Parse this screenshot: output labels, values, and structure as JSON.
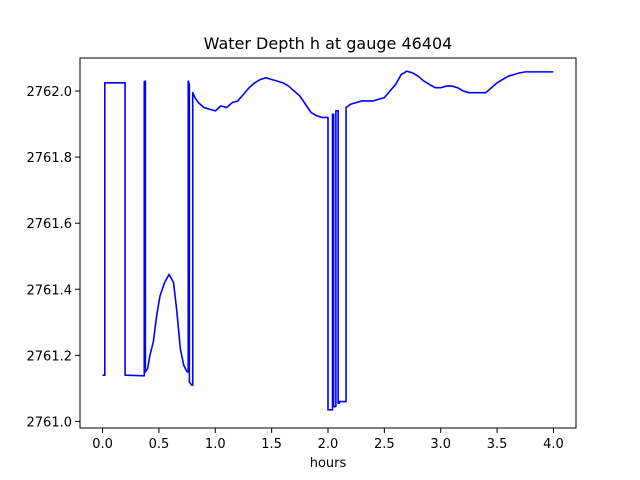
{
  "chart_data": {
    "type": "line",
    "title": "Water Depth h at gauge 46404",
    "xlabel": "hours",
    "ylabel": "",
    "xlim": [
      -0.2,
      4.2
    ],
    "ylim": [
      2760.98,
      2762.1
    ],
    "xticks": [
      0.0,
      0.5,
      1.0,
      1.5,
      2.0,
      2.5,
      3.0,
      3.5,
      4.0
    ],
    "xtick_labels": [
      "0.0",
      "0.5",
      "1.0",
      "1.5",
      "2.0",
      "2.5",
      "3.0",
      "3.5",
      "4.0"
    ],
    "yticks": [
      2761.0,
      2761.2,
      2761.4,
      2761.6,
      2761.8,
      2762.0
    ],
    "ytick_labels": [
      "2761.0",
      "2761.2",
      "2761.4",
      "2761.6",
      "2761.8",
      "2762.0"
    ],
    "grid": false,
    "legend": false,
    "series": [
      {
        "color": "#0000ff",
        "x": [
          0.0,
          0.02,
          0.02,
          0.2,
          0.2,
          0.37,
          0.37,
          0.38,
          0.38,
          0.4,
          0.42,
          0.45,
          0.48,
          0.51,
          0.55,
          0.59,
          0.63,
          0.66,
          0.69,
          0.72,
          0.75,
          0.76,
          0.76,
          0.77,
          0.77,
          0.78,
          0.79,
          0.8,
          0.8,
          0.82,
          0.85,
          0.9,
          0.95,
          1.0,
          1.05,
          1.1,
          1.15,
          1.2,
          1.25,
          1.3,
          1.35,
          1.4,
          1.45,
          1.5,
          1.55,
          1.6,
          1.65,
          1.7,
          1.75,
          1.8,
          1.85,
          1.9,
          1.95,
          2.0,
          2.0,
          2.04,
          2.04,
          2.05,
          2.05,
          2.07,
          2.07,
          2.09,
          2.09,
          2.1,
          2.1,
          2.16,
          2.16,
          2.2,
          2.25,
          2.3,
          2.4,
          2.45,
          2.5,
          2.55,
          2.6,
          2.65,
          2.7,
          2.75,
          2.8,
          2.85,
          2.9,
          2.95,
          3.0,
          3.05,
          3.1,
          3.15,
          3.2,
          3.25,
          3.3,
          3.35,
          3.4,
          3.45,
          3.5,
          3.55,
          3.6,
          3.65,
          3.7,
          3.75,
          3.8,
          3.85,
          3.9,
          3.95,
          4.0
        ],
        "y": [
          2761.14,
          2761.14,
          2762.025,
          2762.025,
          2761.14,
          2761.138,
          2762.028,
          2762.03,
          2761.15,
          2761.16,
          2761.2,
          2761.24,
          2761.32,
          2761.38,
          2761.42,
          2761.445,
          2761.42,
          2761.33,
          2761.22,
          2761.17,
          2761.15,
          2761.15,
          2762.03,
          2762.02,
          2761.12,
          2761.115,
          2761.11,
          2761.11,
          2761.995,
          2761.98,
          2761.965,
          2761.95,
          2761.945,
          2761.94,
          2761.955,
          2761.95,
          2761.965,
          2761.97,
          2761.99,
          2762.01,
          2762.025,
          2762.035,
          2762.04,
          2762.035,
          2762.03,
          2762.025,
          2762.015,
          2762.0,
          2761.985,
          2761.96,
          2761.935,
          2761.925,
          2761.92,
          2761.92,
          2761.035,
          2761.035,
          2761.93,
          2761.93,
          2761.045,
          2761.045,
          2761.94,
          2761.94,
          2761.055,
          2761.055,
          2761.06,
          2761.06,
          2761.95,
          2761.96,
          2761.965,
          2761.97,
          2761.97,
          2761.975,
          2761.98,
          2762.0,
          2762.02,
          2762.05,
          2762.06,
          2762.055,
          2762.045,
          2762.03,
          2762.02,
          2762.01,
          2762.01,
          2762.015,
          2762.015,
          2762.01,
          2762.0,
          2761.995,
          2761.995,
          2761.995,
          2761.995,
          2762.01,
          2762.025,
          2762.035,
          2762.045,
          2762.05,
          2762.055,
          2762.058,
          2762.058,
          2762.058,
          2762.058,
          2762.058,
          2762.058
        ]
      }
    ]
  }
}
